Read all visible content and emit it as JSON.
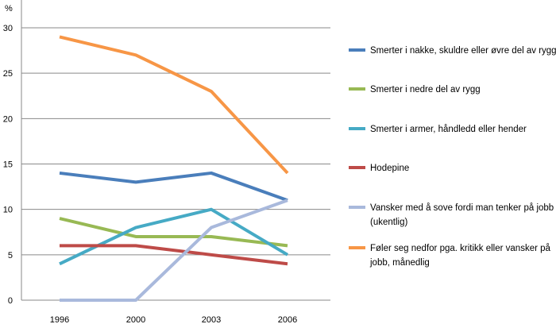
{
  "chart_data": {
    "type": "line",
    "title": "",
    "xlabel": "",
    "ylabel": "%",
    "ylim": [
      0,
      30
    ],
    "y_ticks": [
      "0",
      "5",
      "10",
      "15",
      "20",
      "25",
      "30"
    ],
    "categories": [
      "1996",
      "2000",
      "2003",
      "2006"
    ],
    "grid": true,
    "legend_position": "right",
    "series": [
      {
        "name": "Smerter i nakke, skuldre eller øvre del av rygg",
        "legend_lines": [
          "Smerter i nakke, skuldre eller øvre del av rygg"
        ],
        "color": "#4a7ebb",
        "values": [
          14,
          13,
          14,
          11
        ]
      },
      {
        "name": "Smerter i nedre del av rygg",
        "legend_lines": [
          "Smerter i nedre del av rygg"
        ],
        "color": "#98b954",
        "values": [
          9,
          7,
          7,
          6
        ]
      },
      {
        "name": "Smerter i armer, håndledd eller hender",
        "legend_lines": [
          "Smerter i armer, håndledd eller hender"
        ],
        "color": "#46aac5",
        "values": [
          4,
          8,
          10,
          5
        ]
      },
      {
        "name": "Hodepine",
        "legend_lines": [
          "Hodepine"
        ],
        "color": "#be4b48",
        "values": [
          6,
          6,
          5,
          4
        ]
      },
      {
        "name": "Vansker med å sove fordi man tenker på jobb (ukentlig)",
        "legend_lines": [
          "Vansker med å sove fordi man tenker på jobb",
          "(ukentlig)"
        ],
        "color": "#a9b9dc",
        "values": [
          0,
          0,
          8,
          11
        ]
      },
      {
        "name": "Føler seg nedfor pga. kritikk eller vansker på jobb, månedlig",
        "legend_lines": [
          "Føler seg nedfor pga. kritikk eller vansker på",
          "jobb, månedlig"
        ],
        "color": "#f79646",
        "values": [
          29,
          27,
          23,
          14
        ]
      }
    ]
  }
}
